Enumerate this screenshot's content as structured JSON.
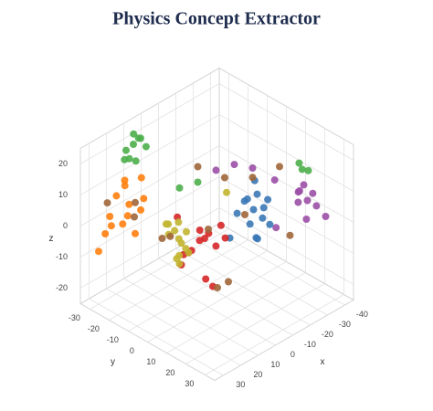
{
  "chart_data": {
    "type": "scatter3d",
    "title": "Physics Concept Extractor",
    "x_label": "x",
    "y_label": "y",
    "z_label": "z",
    "xlim": [
      -45,
      35
    ],
    "ylim": [
      -35,
      35
    ],
    "zlim": [
      -25,
      25
    ],
    "xticks": [
      -40,
      -30,
      -20,
      -10,
      0,
      10,
      20,
      30
    ],
    "yticks": [
      -30,
      -20,
      -10,
      0,
      10,
      20,
      30
    ],
    "zticks": [
      -20,
      -10,
      0,
      10,
      20
    ],
    "grid": true,
    "series": [
      {
        "color": "#ff7f0e",
        "x": [
          18,
          22,
          25,
          15,
          20,
          28,
          12,
          24,
          19,
          26,
          16,
          21,
          30,
          14
        ],
        "y": [
          -25,
          -28,
          -22,
          -30,
          -20,
          -26,
          -24,
          -32,
          -18,
          -27,
          -29,
          -23,
          -30,
          -21
        ],
        "z": [
          5,
          8,
          2,
          10,
          -2,
          4,
          12,
          -5,
          6,
          0,
          9,
          3,
          -8,
          7
        ]
      },
      {
        "color": "#9b4fa6",
        "x": [
          -35,
          -38,
          -32,
          -40,
          -36,
          -30,
          -34,
          -25,
          -20,
          -10,
          -28,
          -37,
          -33,
          -15
        ],
        "y": [
          20,
          22,
          18,
          25,
          15,
          24,
          19,
          12,
          5,
          -5,
          10,
          21,
          17,
          0
        ],
        "z": [
          5,
          3,
          8,
          0,
          6,
          2,
          10,
          12,
          15,
          14,
          -5,
          7,
          4,
          16
        ]
      },
      {
        "color": "#4daf4a",
        "x": [
          10,
          12,
          8,
          14,
          6,
          11,
          9,
          -30,
          -28,
          -5,
          0,
          13,
          7,
          -32
        ],
        "y": [
          -30,
          -32,
          -28,
          -31,
          -27,
          -29,
          -33,
          25,
          22,
          -10,
          -15,
          -26,
          -30,
          20
        ],
        "z": [
          20,
          18,
          22,
          16,
          19,
          24,
          14,
          18,
          20,
          10,
          8,
          17,
          21,
          16
        ]
      },
      {
        "color": "#3a78b5",
        "x": [
          -15,
          -18,
          -12,
          -20,
          -10,
          -16,
          -22,
          -14,
          -17,
          -11,
          -19,
          -13,
          -21,
          -8
        ],
        "y": [
          10,
          12,
          8,
          14,
          6,
          11,
          9,
          13,
          5,
          15,
          7,
          10,
          12,
          4
        ],
        "z": [
          5,
          2,
          8,
          0,
          4,
          10,
          3,
          -3,
          6,
          -1,
          12,
          1,
          7,
          -4
        ]
      },
      {
        "color": "#d62728",
        "x": [
          5,
          8,
          2,
          10,
          0,
          6,
          3,
          -4,
          12,
          7,
          1,
          9,
          4,
          -2
        ],
        "y": [
          0,
          -3,
          2,
          -5,
          4,
          1,
          -6,
          3,
          -2,
          5,
          -1,
          -8,
          6,
          7
        ],
        "z": [
          -2,
          -6,
          0,
          -10,
          -4,
          2,
          -8,
          1,
          -5,
          -12,
          -3,
          4,
          -15,
          -1
        ]
      },
      {
        "color": "#c2b530",
        "x": [
          10,
          14,
          8,
          12,
          6,
          16,
          11,
          9,
          15,
          7,
          13,
          5,
          10,
          -5
        ],
        "y": [
          -5,
          -8,
          -3,
          -10,
          -6,
          -2,
          -12,
          -7,
          -4,
          -9,
          0,
          -11,
          -6,
          5
        ],
        "z": [
          -3,
          0,
          -6,
          2,
          -1,
          -5,
          1,
          -8,
          3,
          -4,
          -2,
          0,
          -10,
          12
        ]
      },
      {
        "color": "#a0663a",
        "x": [
          0,
          -10,
          10,
          -20,
          20,
          5,
          -5,
          15,
          -25,
          25,
          -15,
          8,
          -30,
          2
        ],
        "y": [
          0,
          10,
          -15,
          5,
          -20,
          15,
          -10,
          -25,
          20,
          -30,
          -5,
          12,
          10,
          -18
        ],
        "z": [
          0,
          5,
          -5,
          12,
          8,
          -10,
          15,
          0,
          -3,
          6,
          10,
          -12,
          14,
          -8
        ]
      }
    ]
  }
}
